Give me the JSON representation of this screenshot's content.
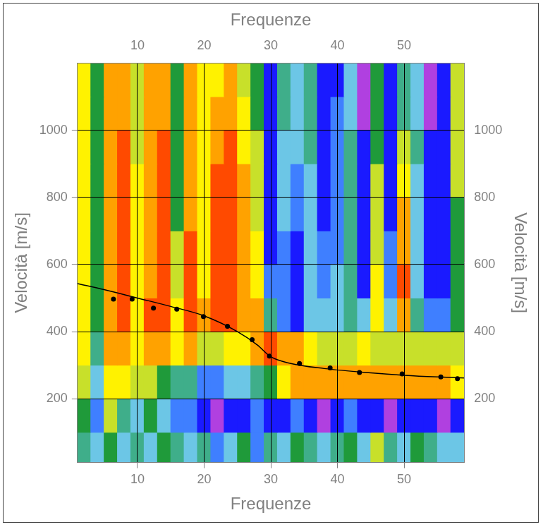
{
  "chart_data": {
    "type": "heatmap",
    "x_label": "Frequenze",
    "y_label": "Velocità [m/s]",
    "xlim": [
      1,
      59
    ],
    "xticks": [
      10,
      20,
      30,
      40,
      50
    ],
    "ylim": [
      10,
      1200
    ],
    "yticks": [
      200,
      400,
      600,
      800,
      1000
    ],
    "grid": true,
    "x_edges": [
      1,
      3,
      5,
      7,
      9,
      11,
      13,
      15,
      17,
      19,
      21,
      23,
      25,
      27,
      29,
      31,
      33,
      35,
      37,
      39,
      41,
      43,
      45,
      47,
      49,
      51,
      53,
      55,
      57,
      59
    ],
    "y_edges": [
      10,
      100,
      200,
      300,
      400,
      500,
      600,
      700,
      800,
      900,
      1000,
      1100,
      1200
    ],
    "zlim": [
      0,
      9
    ],
    "z": [
      [
        4,
        3,
        5,
        3,
        4,
        3,
        5,
        4,
        3,
        4,
        2,
        3,
        5,
        2,
        4,
        3,
        5,
        4,
        3,
        4,
        5,
        3,
        6,
        4,
        3,
        5,
        4,
        3,
        3
      ],
      [
        5,
        2,
        6,
        4,
        3,
        5,
        3,
        2,
        2,
        1,
        0,
        1,
        1,
        2,
        1,
        1,
        2,
        1,
        0,
        1,
        2,
        1,
        1,
        0,
        1,
        1,
        1,
        0,
        1
      ],
      [
        6,
        3,
        7,
        7,
        6,
        6,
        5,
        4,
        4,
        2,
        2,
        3,
        3,
        4,
        5,
        7,
        8,
        8,
        8,
        8,
        8,
        8,
        8,
        8,
        8,
        8,
        8,
        8,
        7
      ],
      [
        7,
        4,
        8,
        8,
        7,
        8,
        8,
        7,
        8,
        6,
        6,
        7,
        7,
        8,
        9,
        8,
        8,
        7,
        6,
        6,
        6,
        7,
        6,
        6,
        6,
        6,
        6,
        6,
        6
      ],
      [
        7,
        5,
        8,
        9,
        7,
        9,
        9,
        7,
        9,
        8,
        9,
        9,
        8,
        8,
        4,
        2,
        1,
        3,
        3,
        3,
        4,
        3,
        7,
        3,
        8,
        4,
        2,
        2,
        5
      ],
      [
        7,
        5,
        8,
        9,
        7,
        8,
        9,
        6,
        9,
        7,
        9,
        9,
        8,
        7,
        2,
        2,
        1,
        3,
        2,
        3,
        4,
        1,
        7,
        2,
        9,
        3,
        1,
        1,
        5
      ],
      [
        7,
        5,
        8,
        9,
        7,
        8,
        9,
        6,
        9,
        7,
        9,
        9,
        8,
        7,
        1,
        2,
        1,
        3,
        2,
        2,
        4,
        1,
        6,
        2,
        8,
        3,
        1,
        1,
        5
      ],
      [
        7,
        5,
        8,
        9,
        7,
        8,
        9,
        5,
        8,
        7,
        9,
        9,
        8,
        6,
        1,
        3,
        2,
        3,
        1,
        2,
        4,
        1,
        6,
        1,
        8,
        3,
        1,
        1,
        5
      ],
      [
        7,
        5,
        8,
        9,
        7,
        8,
        9,
        5,
        8,
        7,
        9,
        9,
        8,
        6,
        1,
        3,
        2,
        3,
        1,
        2,
        4,
        1,
        6,
        1,
        7,
        3,
        1,
        1,
        6
      ],
      [
        7,
        5,
        8,
        9,
        6,
        8,
        9,
        5,
        8,
        7,
        8,
        9,
        7,
        6,
        1,
        3,
        3,
        4,
        1,
        2,
        4,
        1,
        5,
        1,
        6,
        4,
        1,
        1,
        6
      ],
      [
        7,
        5,
        8,
        8,
        6,
        8,
        8,
        5,
        8,
        7,
        8,
        8,
        7,
        5,
        1,
        4,
        3,
        4,
        1,
        2,
        3,
        0,
        5,
        1,
        4,
        3,
        0,
        1,
        6
      ],
      [
        7,
        5,
        8,
        8,
        6,
        8,
        8,
        5,
        8,
        7,
        7,
        8,
        6,
        5,
        1,
        4,
        3,
        4,
        1,
        1,
        3,
        0,
        5,
        1,
        4,
        3,
        0,
        1,
        6
      ]
    ],
    "series": [
      {
        "type": "line",
        "color": "#000000",
        "marker": "none",
        "line_style": "solid",
        "x": [
          1,
          5,
          10,
          15,
          20,
          25,
          28,
          30,
          33,
          38,
          45,
          50,
          55,
          59
        ],
        "values": [
          543,
          525,
          500,
          475,
          447,
          400,
          360,
          325,
          305,
          290,
          277,
          270,
          265,
          262
        ]
      },
      {
        "type": "scatter",
        "color": "#000000",
        "marker": "circle",
        "line_style": "none",
        "x": [
          6.4,
          9.2,
          12.4,
          15.9,
          19.9,
          23.5,
          27.2,
          29.8,
          34.3,
          38.9,
          43.3,
          49.7,
          55.5,
          58.0
        ],
        "values": [
          497,
          497,
          470,
          467,
          445,
          416,
          376,
          327,
          305,
          292,
          278,
          274,
          265,
          260
        ]
      }
    ]
  }
}
